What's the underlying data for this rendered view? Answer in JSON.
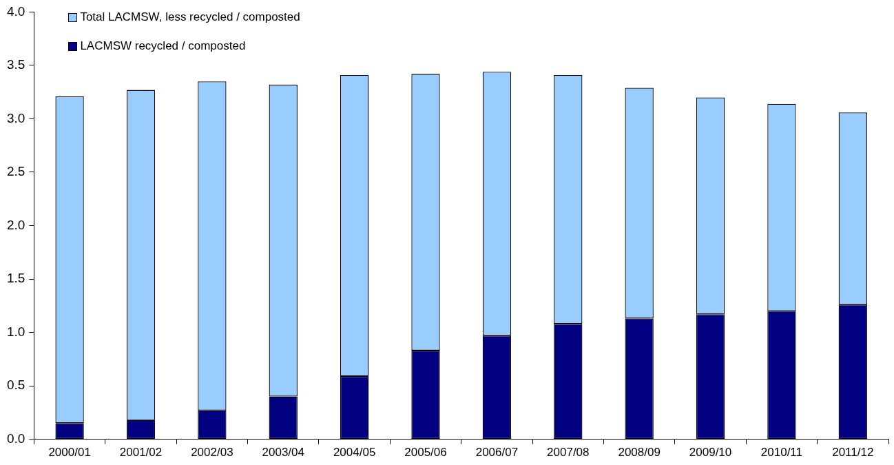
{
  "chart_data": {
    "type": "bar",
    "stacked": true,
    "categories": [
      "2000/01",
      "2001/02",
      "2002/03",
      "2003/04",
      "2004/05",
      "2005/06",
      "2006/07",
      "2007/08",
      "2008/09",
      "2009/10",
      "2010/11",
      "2011/12"
    ],
    "series": [
      {
        "name": "LACMSW recycled / composted",
        "color": "#000080",
        "values": [
          0.15,
          0.18,
          0.27,
          0.4,
          0.59,
          0.83,
          0.97,
          1.08,
          1.13,
          1.17,
          1.2,
          1.26
        ]
      },
      {
        "name": "Total LACMSW, less recycled / composted",
        "color": "#99ccff",
        "values": [
          3.06,
          3.09,
          3.08,
          2.92,
          2.82,
          2.59,
          2.47,
          2.33,
          2.16,
          2.03,
          1.94,
          1.8
        ]
      }
    ],
    "ylim": [
      0,
      4
    ],
    "yticks": [
      {
        "value": 0,
        "label": "0.0"
      },
      {
        "value": 0.5,
        "label": "0.5"
      },
      {
        "value": 1,
        "label": "1.0"
      },
      {
        "value": 1.5,
        "label": "1.5"
      },
      {
        "value": 2,
        "label": "2.0"
      },
      {
        "value": 2.5,
        "label": "2.5"
      },
      {
        "value": 3,
        "label": "3.0"
      },
      {
        "value": 3.5,
        "label": "3.5"
      },
      {
        "value": 4,
        "label": "4.0"
      }
    ],
    "grid": false,
    "legend": "top left"
  }
}
